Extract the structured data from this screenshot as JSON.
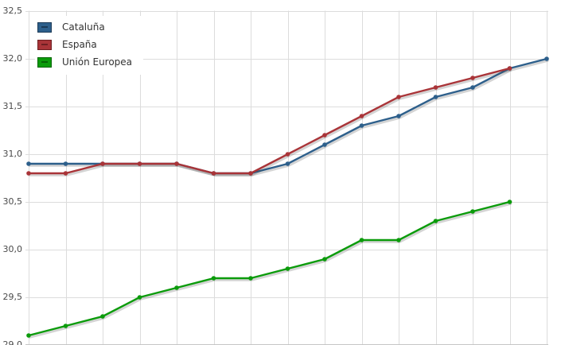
{
  "chart_data": {
    "type": "line",
    "title": "",
    "grid": true,
    "legend_position": "top-left",
    "decimal_separator": ",",
    "y_axis": {
      "min": 29.0,
      "max": 32.5,
      "tick_step": 0.5,
      "tick_labels": [
        "32,5",
        "32,0",
        "31,5",
        "31,0",
        "30,5",
        "30,0",
        "29,5",
        "29,0"
      ]
    },
    "x_axis": {
      "num_points": 15,
      "tick_labels_visible": false
    },
    "series": [
      {
        "name": "Cataluña",
        "color": "#2D5F8B",
        "dark": "#1B3A57",
        "values": [
          30.9,
          30.9,
          30.9,
          30.9,
          30.9,
          30.8,
          30.8,
          30.9,
          31.1,
          31.3,
          31.4,
          31.6,
          31.7,
          31.9,
          32.0
        ]
      },
      {
        "name": "España",
        "color": "#A93438",
        "dark": "#6E1F22",
        "values": [
          30.8,
          30.8,
          30.9,
          30.9,
          30.9,
          30.8,
          30.8,
          31.0,
          31.2,
          31.4,
          31.6,
          31.7,
          31.8,
          31.9
        ]
      },
      {
        "name": "Unión Europea",
        "color": "#0B9B0B",
        "dark": "#056505",
        "values": [
          29.1,
          29.2,
          29.3,
          29.5,
          29.6,
          29.7,
          29.7,
          29.8,
          29.9,
          30.1,
          30.1,
          30.3,
          30.4,
          30.5
        ]
      }
    ],
    "colors": {
      "grid": "#DCDCDC",
      "axis": "#C6C6C6",
      "tick_text": "#4A4A4A",
      "background": "#FFFFFF"
    }
  }
}
